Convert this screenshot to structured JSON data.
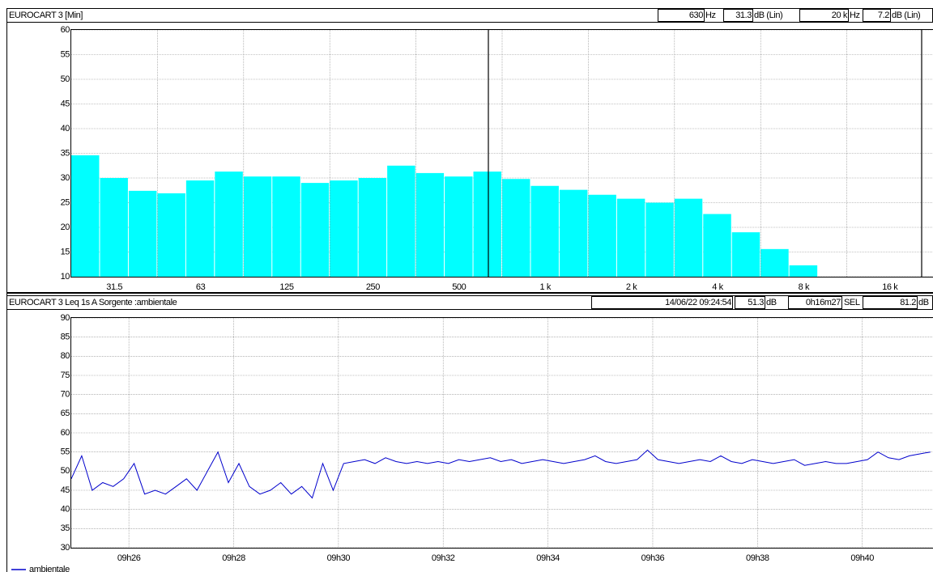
{
  "chart_data": [
    {
      "type": "bar",
      "title": "EUROCART 3 [Min]",
      "readouts": [
        {
          "text": "630",
          "color": "#00e0e0"
        },
        {
          "text": "Hz"
        },
        {
          "text": "31.3",
          "color": "#00e0e0"
        },
        {
          "text": "dB (Lin)"
        },
        {
          "text": "20 k",
          "color": "#00e0e0"
        },
        {
          "text": "Hz"
        },
        {
          "text": "7.2",
          "color": "#00e0e0"
        },
        {
          "text": "dB (Lin)"
        }
      ],
      "categories": [
        null,
        "31.5",
        null,
        null,
        "63",
        null,
        null,
        "125",
        null,
        null,
        "250",
        null,
        null,
        "500",
        null,
        null,
        "1 k",
        null,
        null,
        "2 k",
        null,
        null,
        "4 k",
        null,
        null,
        "8 k",
        null,
        null,
        "16 k",
        null
      ],
      "values": [
        34.6,
        30.0,
        27.4,
        26.9,
        29.5,
        31.3,
        30.3,
        30.3,
        29.0,
        29.5,
        30.0,
        32.5,
        31.0,
        30.3,
        31.3,
        29.8,
        28.4,
        27.6,
        26.6,
        25.8,
        25.0,
        25.8,
        22.7,
        19.0,
        15.6,
        12.3,
        null,
        null,
        null,
        null
      ],
      "color": "#00ffff",
      "ylim": [
        10,
        60
      ],
      "yticks": [
        10,
        15,
        20,
        25,
        30,
        35,
        40,
        45,
        50,
        55,
        60
      ],
      "grid": true
    },
    {
      "type": "line",
      "title": "EUROCART 3   Leq 1s  A  Sorgente :ambientale",
      "readouts": [
        {
          "text": "14/06/22 09:24:54",
          "color": "#33dd33"
        },
        {
          "text": "51.3",
          "color": "#ee00ee"
        },
        {
          "text": "dB"
        },
        {
          "text": "0h16m27",
          "color": "#33dd33"
        },
        {
          "text": "SEL"
        },
        {
          "text": "81.2",
          "color": "#ee00ee"
        },
        {
          "text": "dB"
        }
      ],
      "x": [
        564.9,
        565.1,
        565.3,
        565.5,
        565.7,
        565.9,
        566.1,
        566.3,
        566.5,
        566.7,
        566.9,
        567.1,
        567.3,
        567.5,
        567.7,
        567.9,
        568.1,
        568.3,
        568.5,
        568.7,
        568.9,
        569.1,
        569.3,
        569.5,
        569.7,
        569.9,
        570.1,
        570.3,
        570.5,
        570.7,
        570.9,
        571.1,
        571.3,
        571.5,
        571.7,
        571.9,
        572.1,
        572.3,
        572.5,
        572.7,
        572.9,
        573.1,
        573.3,
        573.5,
        573.7,
        573.9,
        574.1,
        574.3,
        574.5,
        574.7,
        574.9,
        575.1,
        575.3,
        575.5,
        575.7,
        575.9,
        576.1,
        576.3,
        576.5,
        576.7,
        576.9,
        577.1,
        577.3,
        577.5,
        577.7,
        577.9,
        578.1,
        578.3,
        578.5,
        578.7,
        578.9,
        579.1,
        579.3,
        579.5,
        579.7,
        579.9,
        580.1,
        580.3,
        580.5,
        580.7,
        580.9,
        581.1,
        581.3
      ],
      "series": [
        {
          "name": "ambientale",
          "color": "#0000cc",
          "values": [
            48,
            54,
            45,
            47,
            46,
            48,
            52,
            44,
            45,
            44,
            46,
            48,
            45,
            50,
            55,
            47,
            52,
            46,
            44,
            45,
            47,
            44,
            46,
            43,
            52,
            45,
            52,
            52.5,
            53,
            52,
            53.5,
            52.5,
            52,
            52.5,
            52,
            52.5,
            52,
            53,
            52.5,
            53,
            53.5,
            52.5,
            53,
            52,
            52.5,
            53,
            52.5,
            52,
            52.5,
            53,
            54,
            52.5,
            52,
            52.5,
            53,
            55.5,
            53,
            52.5,
            52,
            52.5,
            53,
            52.5,
            54,
            52.5,
            52,
            53,
            52.5,
            52,
            52.5,
            53,
            51.5,
            52,
            52.5,
            52,
            52,
            52.5,
            53,
            55,
            53.5,
            53,
            54,
            54.5,
            55
          ]
        }
      ],
      "xlim": [
        564.9,
        581.35
      ],
      "xticks": [
        {
          "value": 566,
          "label": "09h26"
        },
        {
          "value": 568,
          "label": "09h28"
        },
        {
          "value": 570,
          "label": "09h30"
        },
        {
          "value": 572,
          "label": "09h32"
        },
        {
          "value": 574,
          "label": "09h34"
        },
        {
          "value": 576,
          "label": "09h36"
        },
        {
          "value": 578,
          "label": "09h38"
        },
        {
          "value": 580,
          "label": "09h40"
        }
      ],
      "ylim": [
        30,
        90
      ],
      "yticks": [
        30,
        35,
        40,
        45,
        50,
        55,
        60,
        65,
        70,
        75,
        80,
        85,
        90
      ],
      "grid": true
    }
  ]
}
